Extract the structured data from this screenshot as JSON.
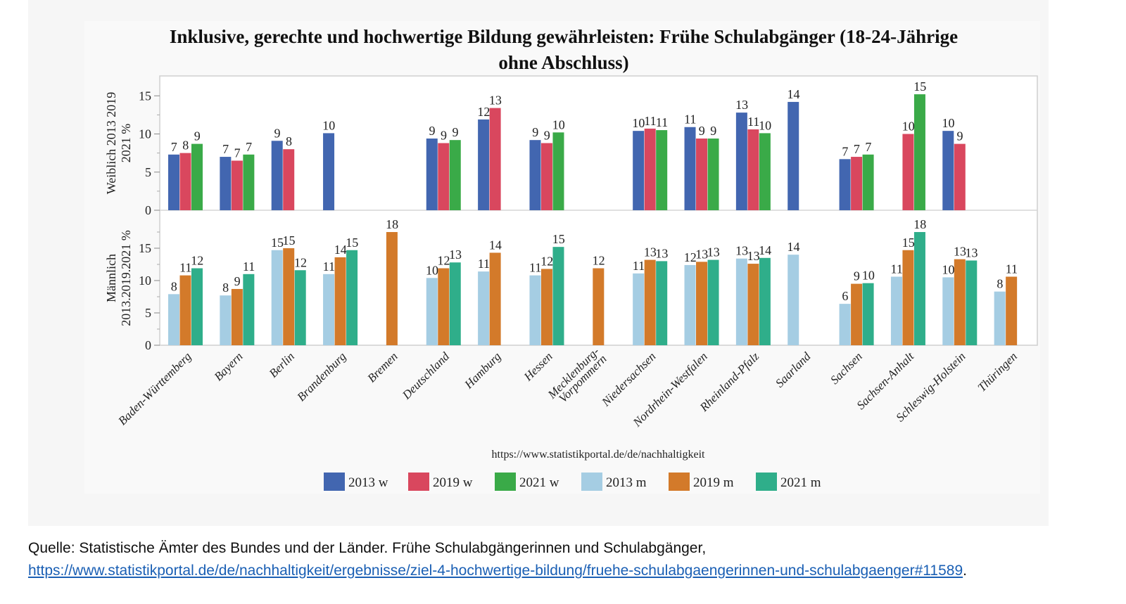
{
  "chart_data": {
    "type": "bar",
    "title": "Inklusive, gerechte und hochwertige Bildung gewährleisten: Frühe Schulabgänger (18-24-Jährige ohne Abschluss)",
    "title_lines": [
      "Inklusive, gerechte und hochwertige Bildung gewährleisten: Frühe Schulabgänger (18-24-Jährige",
      "ohne Abschluss)"
    ],
    "source_note": "https://www.statistikportal.de/de/nachhaltigkeit",
    "categories": [
      "Baden-Württemberg",
      "Bayern",
      "Berlin",
      "Brandenburg",
      "Bremen",
      "Deutschland",
      "Hamburg",
      "Hessen",
      "Mecklenburg-Vorpommern",
      "Niedersachsen",
      "Nordrhein-Westfalen",
      "Rheinland-Pfalz",
      "Saarland",
      "Sachsen",
      "Sachsen-Anhalt",
      "Schleswig-Holstein",
      "Thüringen"
    ],
    "category_label_lines": [
      [
        "Baden-Württemberg"
      ],
      [
        "Bayern"
      ],
      [
        "Berlin"
      ],
      [
        "Brandenburg"
      ],
      [
        "Bremen"
      ],
      [
        "Deutschland"
      ],
      [
        "Hamburg"
      ],
      [
        "Hessen"
      ],
      [
        "Mecklenburg-",
        "Vorpommern"
      ],
      [
        "Niedersachsen"
      ],
      [
        "Nordrhein-Westfalen"
      ],
      [
        "Rheinland-Pfalz"
      ],
      [
        "Saarland"
      ],
      [
        "Sachsen"
      ],
      [
        "Sachsen-Anhalt"
      ],
      [
        "Schleswig-Holstein"
      ],
      [
        "Thüringen"
      ]
    ],
    "panels": [
      {
        "name": "weiblich",
        "ylabel_lines": [
          "Weiblich 2013 2019",
          "2021 %"
        ],
        "ylim": [
          0,
          17.5
        ],
        "yticks": [
          0,
          5,
          10,
          15
        ],
        "series": [
          {
            "name": "2013 w",
            "color": "#4266b0",
            "values": [
              7.3,
              7.0,
              9.1,
              10.1,
              null,
              9.4,
              11.9,
              9.2,
              null,
              10.4,
              10.9,
              12.8,
              14.2,
              6.7,
              null,
              10.4,
              null
            ]
          },
          {
            "name": "2019 w",
            "color": "#d9475e",
            "values": [
              7.5,
              6.5,
              8.0,
              null,
              null,
              8.8,
              13.4,
              8.8,
              null,
              10.7,
              9.4,
              10.6,
              null,
              7.0,
              10.0,
              8.7,
              null
            ]
          },
          {
            "name": "2021 w",
            "color": "#3aaa48",
            "values": [
              8.7,
              7.3,
              null,
              null,
              null,
              9.2,
              null,
              10.2,
              null,
              10.5,
              9.4,
              10.1,
              null,
              7.3,
              15.2,
              null,
              null
            ]
          }
        ]
      },
      {
        "name": "maennlich",
        "ylabel_lines": [
          "Männlich",
          "2013.2019.2021 %"
        ],
        "ylim": [
          0,
          19
        ],
        "yticks": [
          0,
          5,
          10,
          15
        ],
        "series": [
          {
            "name": "2013 m",
            "color": "#a5cde3",
            "values": [
              7.9,
              7.7,
              14.7,
              11.0,
              null,
              10.4,
              11.4,
              10.8,
              null,
              11.1,
              12.4,
              13.4,
              14.0,
              6.4,
              10.6,
              10.5,
              8.3
            ]
          },
          {
            "name": "2019 m",
            "color": "#d37a2a",
            "values": [
              10.8,
              8.7,
              15.0,
              13.6,
              17.5,
              11.9,
              14.3,
              11.8,
              11.9,
              13.2,
              12.9,
              12.6,
              null,
              9.5,
              14.7,
              13.3,
              10.6
            ]
          },
          {
            "name": "2021 m",
            "color": "#2fae8a",
            "values": [
              11.9,
              11.0,
              11.6,
              14.7,
              null,
              12.8,
              null,
              15.2,
              null,
              13.0,
              13.2,
              13.5,
              null,
              9.6,
              17.5,
              13.1,
              null
            ]
          }
        ]
      }
    ],
    "data_labels": {
      "weiblich": [
        [
          7,
          8,
          9
        ],
        [
          7,
          7,
          7
        ],
        [
          9,
          8,
          null
        ],
        [
          10,
          null,
          null
        ],
        [
          null,
          null,
          null
        ],
        [
          9,
          9,
          9
        ],
        [
          12,
          13,
          null
        ],
        [
          9,
          9,
          10
        ],
        [
          null,
          null,
          null
        ],
        [
          10,
          11,
          11
        ],
        [
          11,
          9,
          9
        ],
        [
          13,
          11,
          10
        ],
        [
          14,
          null,
          null
        ],
        [
          7,
          7,
          7
        ],
        [
          null,
          10,
          15
        ],
        [
          10,
          9,
          null
        ],
        [
          null,
          null,
          null
        ]
      ],
      "maennlich": [
        [
          8,
          11,
          12
        ],
        [
          8,
          9,
          11
        ],
        [
          15,
          15,
          12
        ],
        [
          11,
          14,
          15
        ],
        [
          null,
          18,
          null
        ],
        [
          10,
          12,
          13
        ],
        [
          11,
          14,
          null
        ],
        [
          11,
          12,
          15
        ],
        [
          null,
          12,
          null
        ],
        [
          11,
          13,
          13
        ],
        [
          12,
          13,
          13
        ],
        [
          13,
          13,
          14
        ],
        [
          14,
          null,
          null
        ],
        [
          6,
          9,
          10
        ],
        [
          11,
          15,
          18
        ],
        [
          10,
          13,
          13
        ],
        [
          8,
          11,
          null
        ]
      ]
    },
    "legend": {
      "placement": "bottom-center",
      "entries": [
        {
          "label": "2013 w",
          "color": "#4266b0"
        },
        {
          "label": "2019 w",
          "color": "#d9475e"
        },
        {
          "label": "2021 w",
          "color": "#3aaa48"
        },
        {
          "label": "2013 m",
          "color": "#a5cde3"
        },
        {
          "label": "2019 m",
          "color": "#d37a2a"
        },
        {
          "label": "2021 m",
          "color": "#2fae8a"
        }
      ]
    },
    "grid": false
  },
  "caption": {
    "text": "Quelle: Statistische Ämter des Bundes und der Länder. Frühe Schulabgängerinnen und Schulabgänger, ",
    "link": "https://www.statistikportal.de/de/nachhaltigkeit/ergebnisse/ziel-4-hochwertige-bildung/fruehe-schulabgaengerinnen-und-schulabgaenger#11589",
    "end": "."
  }
}
